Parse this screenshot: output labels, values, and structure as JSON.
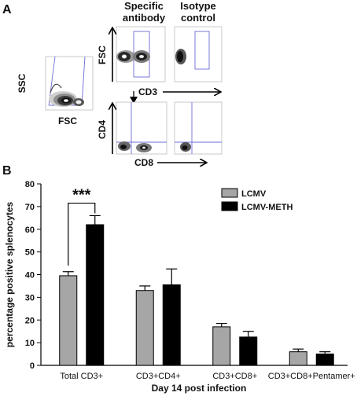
{
  "panel_a": {
    "letter": "A",
    "col_headers": {
      "specific": [
        "Specific",
        "antibody"
      ],
      "isotype": [
        "Isotype",
        "control"
      ]
    },
    "axes": {
      "ssc": "SSC",
      "fsc_bottom": "FSC",
      "fsc_left": "FSC",
      "cd3": "CD3",
      "cd4": "CD4",
      "cd8": "CD8"
    }
  },
  "panel_b": {
    "letter": "B",
    "significance": "***"
  },
  "colors": {
    "lcmv": "#a6a6a6",
    "lcmv_meth": "#000000",
    "gate": "#6b6bd6"
  },
  "chart_data": {
    "type": "bar",
    "categories": [
      "Total CD3+",
      "CD3+CD4+",
      "CD3+CD8+",
      "CD3+CD8+Pentamer+"
    ],
    "series": [
      {
        "name": "LCMV",
        "values": [
          39.5,
          33,
          17,
          6
        ],
        "errors": [
          1.8,
          2,
          1.5,
          1.2
        ],
        "color": "#a6a6a6"
      },
      {
        "name": "LCMV-METH",
        "values": [
          62,
          35.5,
          12.5,
          5
        ],
        "errors": [
          4,
          7,
          2.5,
          1
        ],
        "color": "#000000"
      }
    ],
    "title": "",
    "xlabel": "Day 14 post infection",
    "ylabel": "percentage positive splenocytes",
    "ylim": [
      0,
      80
    ],
    "yticks": [
      0,
      10,
      20,
      30,
      40,
      50,
      60,
      70,
      80
    ],
    "legend_position": "top-right"
  }
}
